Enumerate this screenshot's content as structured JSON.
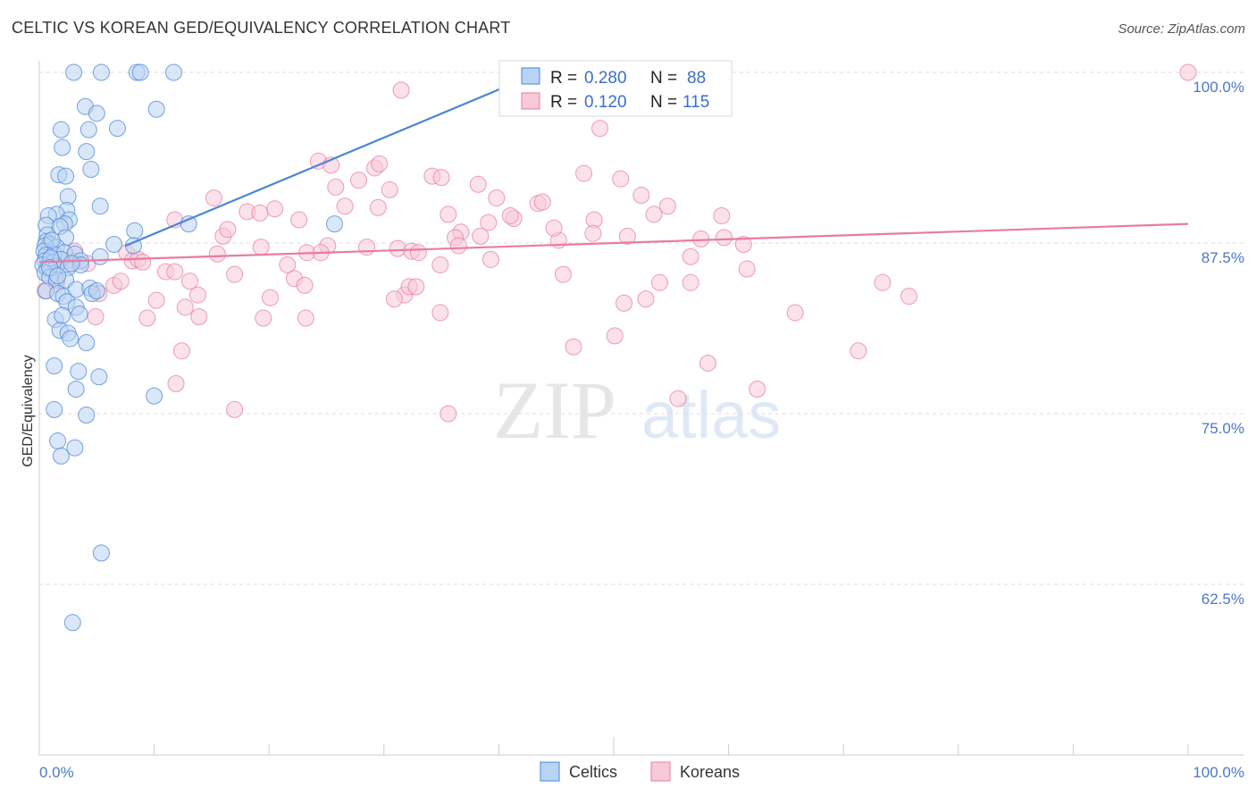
{
  "title": "CELTIC VS KOREAN GED/EQUIVALENCY CORRELATION CHART",
  "source": "Source: ZipAtlas.com",
  "watermark": {
    "zip": "ZIP",
    "atlas": "atlas"
  },
  "colors": {
    "celtics": "#4a86d8",
    "koreans": "#e87ca0",
    "celtics_fill": "#b9d3f3",
    "koreans_fill": "#f8c9d8",
    "tick_label": "#4a78c9"
  },
  "chart_data": {
    "type": "scatter",
    "title": "CELTIC VS KOREAN GED/EQUIVALENCY CORRELATION CHART",
    "xlabel": "",
    "ylabel": "GED/Equivalency",
    "xlim": [
      0,
      100
    ],
    "ylim": [
      50,
      100
    ],
    "x_tick_labels": [
      "0.0%",
      "100.0%"
    ],
    "y_ticks": [
      62.5,
      75.0,
      87.5,
      100.0
    ],
    "y_tick_labels": [
      "62.5%",
      "75.0%",
      "87.5%",
      "100.0%"
    ],
    "grid": "horizontal dashed",
    "legend_position": "top-center",
    "stats": [
      {
        "series": "Celtics",
        "r_label": "R =",
        "r_value": "0.280",
        "n_label": "N =",
        "n_value": "88"
      },
      {
        "series": "Koreans",
        "r_label": "R =",
        "r_value": "0.120",
        "n_label": "N =",
        "n_value": "115"
      }
    ],
    "series": [
      {
        "name": "Celtics",
        "trend": [
          [
            7.5,
            87.3
          ],
          [
            45.0,
            100.5
          ]
        ],
        "points": [
          [
            3,
            100
          ],
          [
            5.4,
            100
          ],
          [
            8.5,
            100
          ],
          [
            8.8,
            100
          ],
          [
            11.7,
            100
          ],
          [
            4,
            97.5
          ],
          [
            10.2,
            97.3
          ],
          [
            5,
            97
          ],
          [
            1.9,
            95.8
          ],
          [
            4.3,
            95.8
          ],
          [
            6.8,
            95.9
          ],
          [
            2,
            94.5
          ],
          [
            4.1,
            94.2
          ],
          [
            4.5,
            92.9
          ],
          [
            1.7,
            92.5
          ],
          [
            2.3,
            92.4
          ],
          [
            2.5,
            90.9
          ],
          [
            5.3,
            90.2
          ],
          [
            2.4,
            89.9
          ],
          [
            1.5,
            89.6
          ],
          [
            2.6,
            89.2
          ],
          [
            0.8,
            89.5
          ],
          [
            0.6,
            88.8
          ],
          [
            2.2,
            88.9
          ],
          [
            1.8,
            88.7
          ],
          [
            8.3,
            88.4
          ],
          [
            13,
            88.9
          ],
          [
            25.7,
            88.9
          ],
          [
            0.7,
            88.1
          ],
          [
            2.3,
            87.9
          ],
          [
            0.6,
            87.6
          ],
          [
            0.9,
            87.4
          ],
          [
            1.5,
            87.2
          ],
          [
            0.5,
            87.3
          ],
          [
            6.5,
            87.4
          ],
          [
            8.2,
            87.3
          ],
          [
            0.4,
            86.9
          ],
          [
            0.6,
            86.6
          ],
          [
            1.3,
            86.7
          ],
          [
            2.2,
            86.8
          ],
          [
            3.1,
            86.7
          ],
          [
            5.3,
            86.5
          ],
          [
            0.5,
            86.2
          ],
          [
            1.2,
            86.1
          ],
          [
            1.9,
            86.3
          ],
          [
            3.6,
            86.2
          ],
          [
            0.3,
            85.9
          ],
          [
            0.7,
            85.6
          ],
          [
            1.5,
            85.8
          ],
          [
            2.5,
            85.7
          ],
          [
            3.6,
            85.9
          ],
          [
            0.5,
            85.3
          ],
          [
            0.9,
            85.0
          ],
          [
            1.5,
            84.8
          ],
          [
            2.3,
            84.8
          ],
          [
            0.6,
            84.0
          ],
          [
            1.6,
            83.8
          ],
          [
            2.1,
            83.6
          ],
          [
            3.2,
            84.1
          ],
          [
            4.4,
            84.2
          ],
          [
            4.6,
            83.8
          ],
          [
            5.0,
            84.0
          ],
          [
            2.4,
            83.2
          ],
          [
            3.2,
            82.8
          ],
          [
            3.5,
            82.3
          ],
          [
            1.4,
            81.9
          ],
          [
            2.0,
            82.2
          ],
          [
            1.8,
            81.1
          ],
          [
            2.5,
            80.9
          ],
          [
            2.7,
            80.5
          ],
          [
            4.1,
            80.2
          ],
          [
            1.3,
            78.5
          ],
          [
            3.4,
            78.1
          ],
          [
            5.2,
            77.7
          ],
          [
            3.2,
            76.8
          ],
          [
            10,
            76.3
          ],
          [
            1.3,
            75.3
          ],
          [
            4.1,
            74.9
          ],
          [
            1.6,
            73.0
          ],
          [
            3.1,
            72.5
          ],
          [
            1.9,
            71.9
          ],
          [
            5.4,
            64.8
          ],
          [
            2.9,
            59.7
          ],
          [
            1.0,
            86.4
          ],
          [
            0.9,
            85.7
          ],
          [
            1.6,
            85.1
          ],
          [
            2.8,
            86.0
          ],
          [
            1.1,
            87.7
          ]
        ]
      },
      {
        "name": "Koreans",
        "trend": [
          [
            0,
            86.1
          ],
          [
            100,
            88.9
          ]
        ],
        "points": [
          [
            41,
            100
          ],
          [
            100,
            100
          ],
          [
            31.5,
            98.7
          ],
          [
            48.8,
            95.9
          ],
          [
            24.3,
            93.5
          ],
          [
            25.4,
            93.2
          ],
          [
            29.2,
            93.0
          ],
          [
            29.6,
            93.3
          ],
          [
            34.2,
            92.4
          ],
          [
            35.0,
            92.3
          ],
          [
            47.4,
            92.6
          ],
          [
            50.6,
            92.2
          ],
          [
            27.8,
            92.1
          ],
          [
            25.8,
            91.6
          ],
          [
            30.5,
            91.4
          ],
          [
            38.2,
            91.8
          ],
          [
            15.2,
            90.8
          ],
          [
            29.5,
            90.1
          ],
          [
            39.8,
            90.8
          ],
          [
            43.4,
            90.4
          ],
          [
            43.8,
            90.5
          ],
          [
            52.4,
            91.0
          ],
          [
            54.7,
            90.2
          ],
          [
            20.5,
            90.0
          ],
          [
            26.6,
            90.2
          ],
          [
            18.1,
            89.8
          ],
          [
            19.2,
            89.7
          ],
          [
            35.6,
            89.6
          ],
          [
            41.3,
            89.3
          ],
          [
            39.1,
            89.0
          ],
          [
            41,
            89.5
          ],
          [
            53.5,
            89.6
          ],
          [
            59.4,
            89.5
          ],
          [
            48.3,
            89.2
          ],
          [
            11.8,
            89.2
          ],
          [
            22.6,
            89.2
          ],
          [
            16.0,
            88.0
          ],
          [
            16.4,
            88.5
          ],
          [
            48.2,
            88.2
          ],
          [
            51.2,
            88.0
          ],
          [
            36.7,
            88.3
          ],
          [
            36.2,
            87.9
          ],
          [
            38.4,
            88.0
          ],
          [
            45.2,
            87.7
          ],
          [
            36.5,
            87.3
          ],
          [
            57.6,
            87.8
          ],
          [
            59.6,
            87.9
          ],
          [
            61.3,
            87.4
          ],
          [
            19.3,
            87.2
          ],
          [
            25.1,
            87.3
          ],
          [
            31.2,
            87.1
          ],
          [
            23.3,
            86.8
          ],
          [
            24.5,
            86.8
          ],
          [
            7.6,
            86.8
          ],
          [
            3.1,
            86.9
          ],
          [
            32.4,
            86.9
          ],
          [
            39.3,
            86.3
          ],
          [
            56.7,
            86.5
          ],
          [
            8.1,
            86.2
          ],
          [
            8.6,
            86.3
          ],
          [
            2.9,
            86.2
          ],
          [
            1.5,
            86.3
          ],
          [
            21.6,
            85.9
          ],
          [
            34.9,
            85.9
          ],
          [
            11.0,
            85.4
          ],
          [
            11.8,
            85.4
          ],
          [
            17.0,
            85.2
          ],
          [
            22.2,
            84.9
          ],
          [
            6.5,
            84.4
          ],
          [
            7.1,
            84.7
          ],
          [
            13.1,
            84.7
          ],
          [
            45.6,
            85.2
          ],
          [
            54.0,
            84.6
          ],
          [
            56.7,
            84.6
          ],
          [
            61.6,
            85.6
          ],
          [
            73.4,
            84.6
          ],
          [
            75.7,
            83.6
          ],
          [
            13.8,
            83.7
          ],
          [
            20.1,
            83.5
          ],
          [
            23.1,
            84.4
          ],
          [
            10.2,
            83.3
          ],
          [
            31.8,
            83.7
          ],
          [
            32.2,
            84.3
          ],
          [
            32.8,
            84.3
          ],
          [
            50.9,
            83.1
          ],
          [
            52.8,
            83.4
          ],
          [
            12.7,
            82.8
          ],
          [
            30.9,
            83.4
          ],
          [
            34.9,
            82.4
          ],
          [
            65.8,
            82.4
          ],
          [
            4.9,
            82.1
          ],
          [
            9.4,
            82.0
          ],
          [
            13.9,
            82.1
          ],
          [
            19.5,
            82.0
          ],
          [
            23.2,
            82.0
          ],
          [
            50.1,
            80.7
          ],
          [
            46.5,
            79.9
          ],
          [
            71.3,
            79.6
          ],
          [
            12.4,
            79.6
          ],
          [
            58.2,
            78.7
          ],
          [
            11.9,
            77.2
          ],
          [
            62.5,
            76.8
          ],
          [
            55.6,
            76.1
          ],
          [
            17.0,
            75.3
          ],
          [
            35.6,
            75.0
          ],
          [
            0.5,
            84.0
          ],
          [
            1.5,
            84.5
          ],
          [
            2.4,
            86.2
          ],
          [
            4.2,
            86.0
          ],
          [
            5.2,
            83.8
          ],
          [
            9.0,
            86.1
          ],
          [
            15.5,
            86.7
          ],
          [
            28.5,
            87.2
          ],
          [
            33.0,
            86.8
          ],
          [
            44.8,
            88.6
          ]
        ]
      }
    ]
  }
}
